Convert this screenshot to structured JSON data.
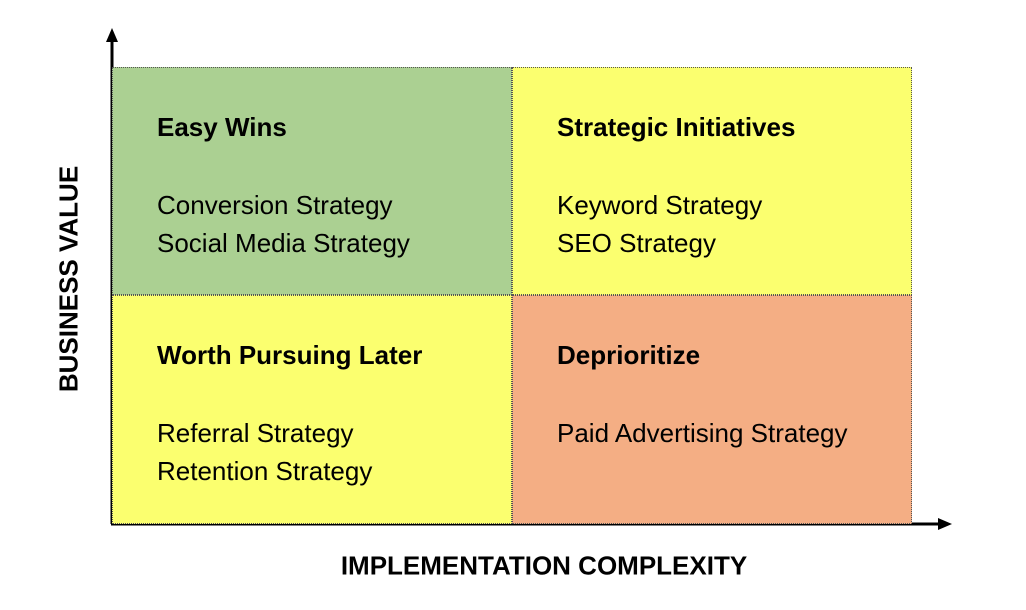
{
  "axes": {
    "y_label": "BUSINESS VALUE",
    "x_label": "IMPLEMENTATION COMPLEXITY"
  },
  "quadrants": [
    {
      "title": "Easy Wins",
      "color": "#abd092",
      "items": [
        "Conversion Strategy",
        "Social Media Strategy"
      ]
    },
    {
      "title": "Strategic Initiatives",
      "color": "#fbff6f",
      "items": [
        "Keyword Strategy",
        "SEO Strategy"
      ]
    },
    {
      "title": "Worth Pursuing Later",
      "color": "#fbff6f",
      "items": [
        "Referral Strategy",
        "Retention Strategy"
      ]
    },
    {
      "title": "Deprioritize",
      "color": "#f4ae84",
      "items": [
        "Paid Advertising Strategy"
      ]
    }
  ]
}
